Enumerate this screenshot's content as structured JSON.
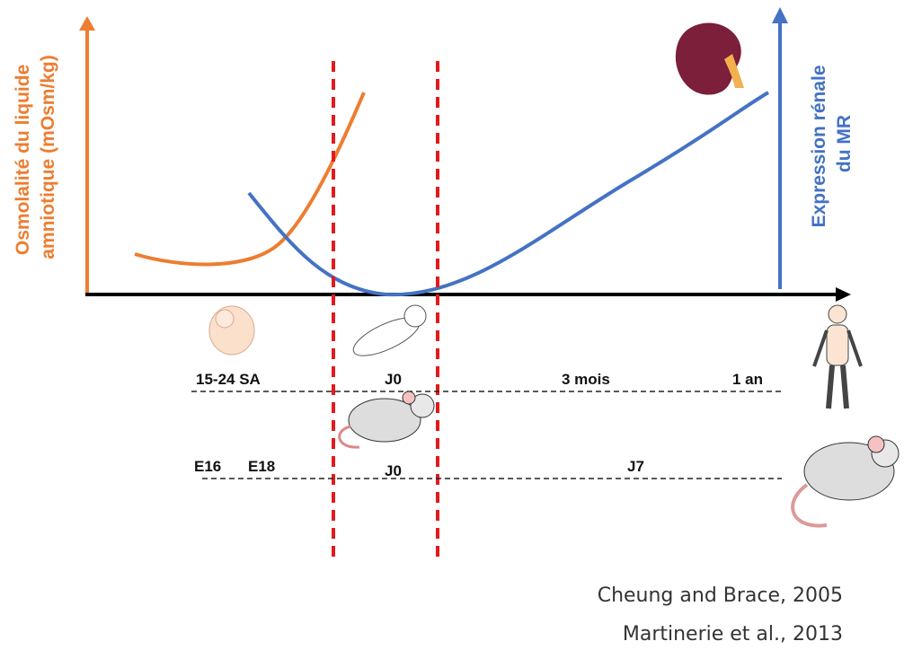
{
  "left_axis": {
    "lines": [
      "Osmolalité du liquide",
      "amniotique (mOsm/kg)"
    ]
  },
  "right_axis": {
    "lines": [
      "Expression rénale",
      "du MR"
    ]
  },
  "human_timeline": {
    "labels": [
      "15-24 SA",
      "J0",
      "3 mois",
      "1 an"
    ]
  },
  "mouse_timeline": {
    "labels": [
      "E16",
      "E18",
      "J0",
      "J7"
    ]
  },
  "citations": [
    "Cheung and Brace, 2005",
    "Martinerie et al., 2013"
  ]
}
